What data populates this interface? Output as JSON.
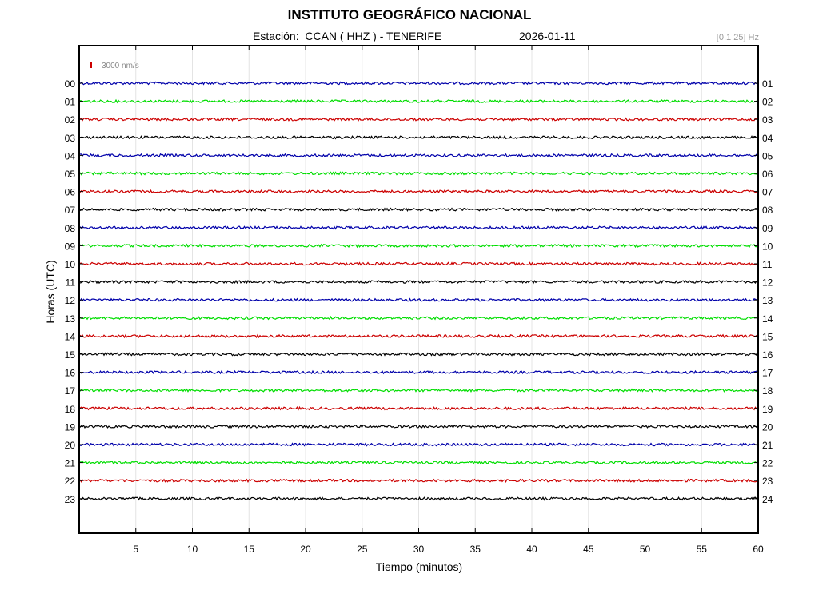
{
  "header": {
    "title": "INSTITUTO GEOGRÁFICO NACIONAL",
    "station": "Estación:  CCAN ( HHZ ) - TENERIFE",
    "date": "2026-01-11",
    "filter": "[0.1 25] Hz"
  },
  "chart_data": {
    "type": "line",
    "xlabel": "Tiempo (minutos)",
    "ylabel": "Horas (UTC)",
    "xlim": [
      0,
      60
    ],
    "x_ticks": [
      5,
      10,
      15,
      20,
      25,
      30,
      35,
      40,
      45,
      50,
      55,
      60
    ],
    "grid": true,
    "scale_bar": {
      "value": 3000,
      "label": "3000 nm/s",
      "color": "#cc0000"
    },
    "hours_left": [
      "00",
      "01",
      "02",
      "03",
      "04",
      "05",
      "06",
      "07",
      "08",
      "09",
      "10",
      "11",
      "12",
      "13",
      "14",
      "15",
      "16",
      "17",
      "18",
      "19",
      "20",
      "21",
      "22",
      "23"
    ],
    "hours_right": [
      "01",
      "02",
      "03",
      "04",
      "05",
      "06",
      "07",
      "08",
      "09",
      "10",
      "11",
      "12",
      "13",
      "14",
      "15",
      "16",
      "17",
      "18",
      "19",
      "20",
      "21",
      "22",
      "23",
      "24"
    ],
    "trace_colors": [
      "#0000aa",
      "#00dd00",
      "#cc0000",
      "#000000"
    ]
  }
}
